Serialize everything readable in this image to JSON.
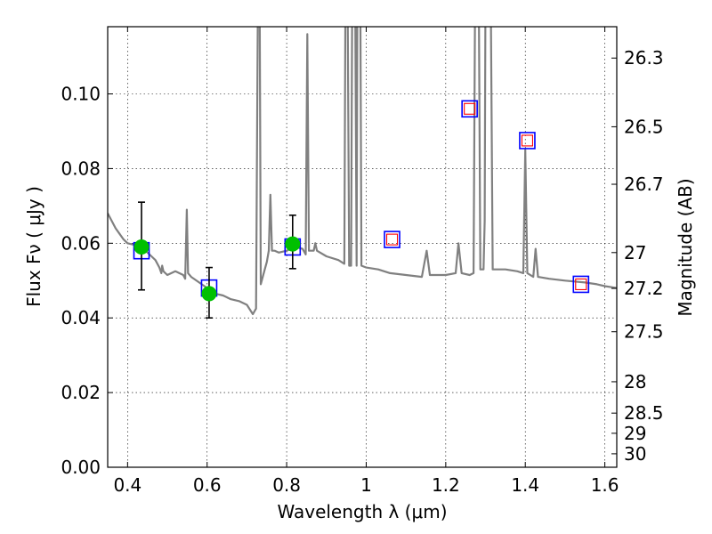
{
  "chart_data": {
    "type": "scatter",
    "xlabel": "Wavelength  λ (μm)",
    "ylabel": "Flux  Fν  ( μJy )",
    "y2label": "Magnitude (AB)",
    "xlim": [
      0.35,
      1.63
    ],
    "ylim": [
      0.0,
      0.118
    ],
    "xticks": [
      0.4,
      0.6,
      0.8,
      1.0,
      1.2,
      1.4,
      1.6
    ],
    "xtick_labels": [
      "0.4",
      "0.6",
      "0.8",
      "1",
      "1.2",
      "1.4",
      "1.6"
    ],
    "yticks": [
      0.0,
      0.02,
      0.04,
      0.06,
      0.08,
      0.1
    ],
    "ytick_labels": [
      "0.00",
      "0.02",
      "0.04",
      "0.06",
      "0.08",
      "0.10"
    ],
    "mag_ticks": [
      {
        "label": "26.3",
        "flux": 0.1096
      },
      {
        "label": "26.5",
        "flux": 0.0912
      },
      {
        "label": "26.7",
        "flux": 0.0758
      },
      {
        "label": "27",
        "flux": 0.0575
      },
      {
        "label": "27.2",
        "flux": 0.0479
      },
      {
        "label": "27.5",
        "flux": 0.0363
      },
      {
        "label": "28",
        "flux": 0.0229
      },
      {
        "label": "28.5",
        "flux": 0.0145
      },
      {
        "label": "29",
        "flux": 0.0091
      },
      {
        "label": "30",
        "flux": 0.0036
      }
    ],
    "grid": true,
    "colors": {
      "sed": "#808080",
      "observed": "#00c000",
      "model_box": "#0000ff",
      "upper_box": "#ff0000",
      "errorbar": "#000000"
    },
    "series": [
      {
        "kind": "line",
        "points": [
          [
            0.35,
            0.068
          ],
          [
            0.36,
            0.066
          ],
          [
            0.37,
            0.064
          ],
          [
            0.38,
            0.0625
          ],
          [
            0.39,
            0.061
          ],
          [
            0.4,
            0.06
          ],
          [
            0.42,
            0.0595
          ],
          [
            0.44,
            0.0585
          ],
          [
            0.46,
            0.0565
          ],
          [
            0.47,
            0.0555
          ],
          [
            0.48,
            0.0535
          ],
          [
            0.485,
            0.052
          ],
          [
            0.487,
            0.054
          ],
          [
            0.49,
            0.0525
          ],
          [
            0.5,
            0.0515
          ],
          [
            0.52,
            0.0525
          ],
          [
            0.54,
            0.0515
          ],
          [
            0.545,
            0.0505
          ],
          [
            0.549,
            0.069
          ],
          [
            0.552,
            0.052
          ],
          [
            0.56,
            0.051
          ],
          [
            0.58,
            0.0495
          ],
          [
            0.6,
            0.048
          ],
          [
            0.62,
            0.0465
          ],
          [
            0.64,
            0.046
          ],
          [
            0.66,
            0.045
          ],
          [
            0.68,
            0.0445
          ],
          [
            0.7,
            0.0435
          ],
          [
            0.715,
            0.041
          ],
          [
            0.723,
            0.0425
          ],
          [
            0.728,
            0.13
          ],
          [
            0.732,
            0.13
          ],
          [
            0.735,
            0.049
          ],
          [
            0.745,
            0.053
          ],
          [
            0.75,
            0.055
          ],
          [
            0.755,
            0.058
          ],
          [
            0.759,
            0.073
          ],
          [
            0.763,
            0.058
          ],
          [
            0.77,
            0.058
          ],
          [
            0.78,
            0.0575
          ],
          [
            0.8,
            0.058
          ],
          [
            0.82,
            0.059
          ],
          [
            0.84,
            0.0585
          ],
          [
            0.848,
            0.057
          ],
          [
            0.852,
            0.116
          ],
          [
            0.856,
            0.058
          ],
          [
            0.86,
            0.058
          ],
          [
            0.868,
            0.058
          ],
          [
            0.872,
            0.06
          ],
          [
            0.876,
            0.058
          ],
          [
            0.9,
            0.0565
          ],
          [
            0.93,
            0.0555
          ],
          [
            0.945,
            0.0545
          ],
          [
            0.948,
            0.13
          ],
          [
            0.953,
            0.13
          ],
          [
            0.957,
            0.054
          ],
          [
            0.962,
            0.054
          ],
          [
            0.965,
            0.13
          ],
          [
            0.972,
            0.13
          ],
          [
            0.976,
            0.054
          ],
          [
            0.978,
            0.13
          ],
          [
            0.985,
            0.13
          ],
          [
            0.988,
            0.054
          ],
          [
            1.0,
            0.0535
          ],
          [
            1.03,
            0.053
          ],
          [
            1.06,
            0.052
          ],
          [
            1.1,
            0.0515
          ],
          [
            1.14,
            0.051
          ],
          [
            1.152,
            0.058
          ],
          [
            1.16,
            0.0515
          ],
          [
            1.2,
            0.0515
          ],
          [
            1.225,
            0.052
          ],
          [
            1.232,
            0.06
          ],
          [
            1.24,
            0.052
          ],
          [
            1.26,
            0.0515
          ],
          [
            1.27,
            0.052
          ],
          [
            1.274,
            0.13
          ],
          [
            1.283,
            0.13
          ],
          [
            1.287,
            0.053
          ],
          [
            1.295,
            0.053
          ],
          [
            1.298,
            0.066
          ],
          [
            1.3,
            0.13
          ],
          [
            1.313,
            0.13
          ],
          [
            1.318,
            0.053
          ],
          [
            1.33,
            0.053
          ],
          [
            1.35,
            0.053
          ],
          [
            1.38,
            0.0525
          ],
          [
            1.395,
            0.052
          ],
          [
            1.4,
            0.085
          ],
          [
            1.405,
            0.052
          ],
          [
            1.42,
            0.051
          ],
          [
            1.426,
            0.0585
          ],
          [
            1.432,
            0.051
          ],
          [
            1.46,
            0.0505
          ],
          [
            1.5,
            0.05
          ],
          [
            1.55,
            0.0495
          ],
          [
            1.58,
            0.049
          ],
          [
            1.6,
            0.0485
          ],
          [
            1.63,
            0.048
          ]
        ]
      },
      {
        "kind": "model_boxes",
        "points": [
          [
            0.435,
            0.058
          ],
          [
            0.605,
            0.048
          ],
          [
            0.815,
            0.059
          ],
          [
            1.065,
            0.061
          ],
          [
            1.26,
            0.096
          ],
          [
            1.405,
            0.0875
          ],
          [
            1.54,
            0.049
          ]
        ]
      },
      {
        "kind": "inner_red_boxes",
        "points": [
          [
            1.065,
            0.061
          ],
          [
            1.26,
            0.096
          ],
          [
            1.405,
            0.0875
          ],
          [
            1.54,
            0.049
          ]
        ]
      },
      {
        "kind": "observed",
        "points": [
          {
            "x": 0.435,
            "y": 0.059,
            "err_low": 0.0475,
            "err_high": 0.071
          },
          {
            "x": 0.605,
            "y": 0.0465,
            "err_low": 0.04,
            "err_high": 0.0535
          },
          {
            "x": 0.815,
            "y": 0.0598,
            "err_low": 0.0532,
            "err_high": 0.0675
          }
        ]
      }
    ]
  }
}
